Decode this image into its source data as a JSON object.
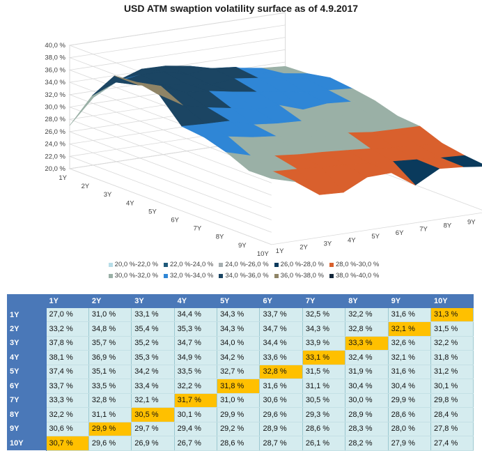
{
  "chart_data": {
    "type": "surface",
    "title": "USD ATM swaption volatility surface as of 4.9.2017",
    "expiries": [
      "1Y",
      "2Y",
      "3Y",
      "4Y",
      "5Y",
      "6Y",
      "7Y",
      "8Y",
      "9Y",
      "10Y"
    ],
    "tenors": [
      "1Y",
      "2Y",
      "3Y",
      "4Y",
      "5Y",
      "6Y",
      "7Y",
      "8Y",
      "9Y",
      "10Y"
    ],
    "z_ticks": [
      "20,0 %",
      "22,0 %",
      "24,0 %",
      "26,0 %",
      "28,0 %",
      "30,0 %",
      "32,0 %",
      "34,0 %",
      "36,0 %",
      "38,0 %",
      "40,0 %"
    ],
    "zlim": [
      20,
      40
    ],
    "values": [
      [
        27.0,
        31.0,
        33.1,
        34.4,
        34.3,
        33.7,
        32.5,
        32.2,
        31.6,
        31.3
      ],
      [
        33.2,
        34.8,
        35.4,
        35.3,
        34.3,
        34.7,
        34.3,
        32.8,
        32.1,
        31.5
      ],
      [
        37.8,
        35.7,
        35.2,
        34.7,
        34.0,
        34.4,
        33.9,
        33.3,
        32.6,
        32.2
      ],
      [
        38.1,
        36.9,
        35.3,
        34.9,
        34.2,
        33.6,
        33.1,
        32.4,
        32.1,
        31.8
      ],
      [
        37.4,
        35.1,
        34.2,
        33.5,
        32.7,
        32.8,
        31.5,
        31.9,
        31.6,
        31.2
      ],
      [
        33.7,
        33.5,
        33.4,
        32.2,
        31.8,
        31.6,
        31.1,
        30.4,
        30.4,
        30.1
      ],
      [
        33.3,
        32.8,
        32.1,
        31.7,
        31.0,
        30.6,
        30.5,
        30.0,
        29.9,
        29.8
      ],
      [
        32.2,
        31.1,
        30.5,
        30.1,
        29.9,
        29.6,
        29.3,
        28.9,
        28.6,
        28.4
      ],
      [
        30.6,
        29.9,
        29.7,
        29.4,
        29.2,
        28.9,
        28.6,
        28.3,
        28.0,
        27.8
      ],
      [
        30.7,
        29.6,
        26.9,
        26.7,
        28.6,
        28.7,
        26.1,
        28.2,
        27.9,
        27.4
      ]
    ],
    "legend": [
      {
        "label": "20,0 %-22,0 %",
        "color": "#b7dde8"
      },
      {
        "label": "22,0 %-24,0 %",
        "color": "#1f5a7a"
      },
      {
        "label": "24,0 %-26,0 %",
        "color": "#a6aeb0"
      },
      {
        "label": "26,0 %-28,0 %",
        "color": "#0a3a5c"
      },
      {
        "label": "28,0 %-30,0 %",
        "color": "#d9602d"
      },
      {
        "label": "30,0 %-32,0 %",
        "color": "#9ab0a6"
      },
      {
        "label": "32,0 %-34,0 %",
        "color": "#2f86d6"
      },
      {
        "label": "34,0 %-36,0 %",
        "color": "#1b4563"
      },
      {
        "label": "36,0 %-38,0 %",
        "color": "#8f8466"
      },
      {
        "label": "38,0 %-40,0 %",
        "color": "#12263a"
      }
    ]
  },
  "table": {
    "columns": [
      "",
      "1Y",
      "2Y",
      "3Y",
      "4Y",
      "5Y",
      "6Y",
      "7Y",
      "8Y",
      "9Y",
      "10Y"
    ],
    "rows": [
      {
        "label": "1Y",
        "cells": [
          "27,0 %",
          "31,0 %",
          "33,1 %",
          "34,4 %",
          "34,3 %",
          "33,7 %",
          "32,5 %",
          "32,2 %",
          "31,6 %",
          "31,3 %"
        ]
      },
      {
        "label": "2Y",
        "cells": [
          "33,2 %",
          "34,8 %",
          "35,4 %",
          "35,3 %",
          "34,3 %",
          "34,7 %",
          "34,3 %",
          "32,8 %",
          "32,1 %",
          "31,5 %"
        ]
      },
      {
        "label": "3Y",
        "cells": [
          "37,8 %",
          "35,7 %",
          "35,2 %",
          "34,7 %",
          "34,0 %",
          "34,4 %",
          "33,9 %",
          "33,3 %",
          "32,6 %",
          "32,2 %"
        ]
      },
      {
        "label": "4Y",
        "cells": [
          "38,1 %",
          "36,9 %",
          "35,3 %",
          "34,9 %",
          "34,2 %",
          "33,6 %",
          "33,1 %",
          "32,4 %",
          "32,1 %",
          "31,8 %"
        ]
      },
      {
        "label": "5Y",
        "cells": [
          "37,4 %",
          "35,1 %",
          "34,2 %",
          "33,5 %",
          "32,7 %",
          "32,8 %",
          "31,5 %",
          "31,9 %",
          "31,6 %",
          "31,2 %"
        ]
      },
      {
        "label": "6Y",
        "cells": [
          "33,7 %",
          "33,5 %",
          "33,4 %",
          "32,2 %",
          "31,8 %",
          "31,6 %",
          "31,1 %",
          "30,4 %",
          "30,4 %",
          "30,1 %"
        ]
      },
      {
        "label": "7Y",
        "cells": [
          "33,3 %",
          "32,8 %",
          "32,1 %",
          "31,7 %",
          "31,0 %",
          "30,6 %",
          "30,5 %",
          "30,0 %",
          "29,9 %",
          "29,8 %"
        ]
      },
      {
        "label": "8Y",
        "cells": [
          "32,2 %",
          "31,1 %",
          "30,5 %",
          "30,1 %",
          "29,9 %",
          "29,6 %",
          "29,3 %",
          "28,9 %",
          "28,6 %",
          "28,4 %"
        ]
      },
      {
        "label": "9Y",
        "cells": [
          "30,6 %",
          "29,9 %",
          "29,7 %",
          "29,4 %",
          "29,2 %",
          "28,9 %",
          "28,6 %",
          "28,3 %",
          "28,0 %",
          "27,8 %"
        ]
      },
      {
        "label": "10Y",
        "cells": [
          "30,7 %",
          "29,6 %",
          "26,9 %",
          "26,7 %",
          "28,6 %",
          "28,7 %",
          "26,1 %",
          "28,2 %",
          "27,9 %",
          "27,4 %"
        ]
      }
    ],
    "highlight_color": "#ffc000"
  }
}
